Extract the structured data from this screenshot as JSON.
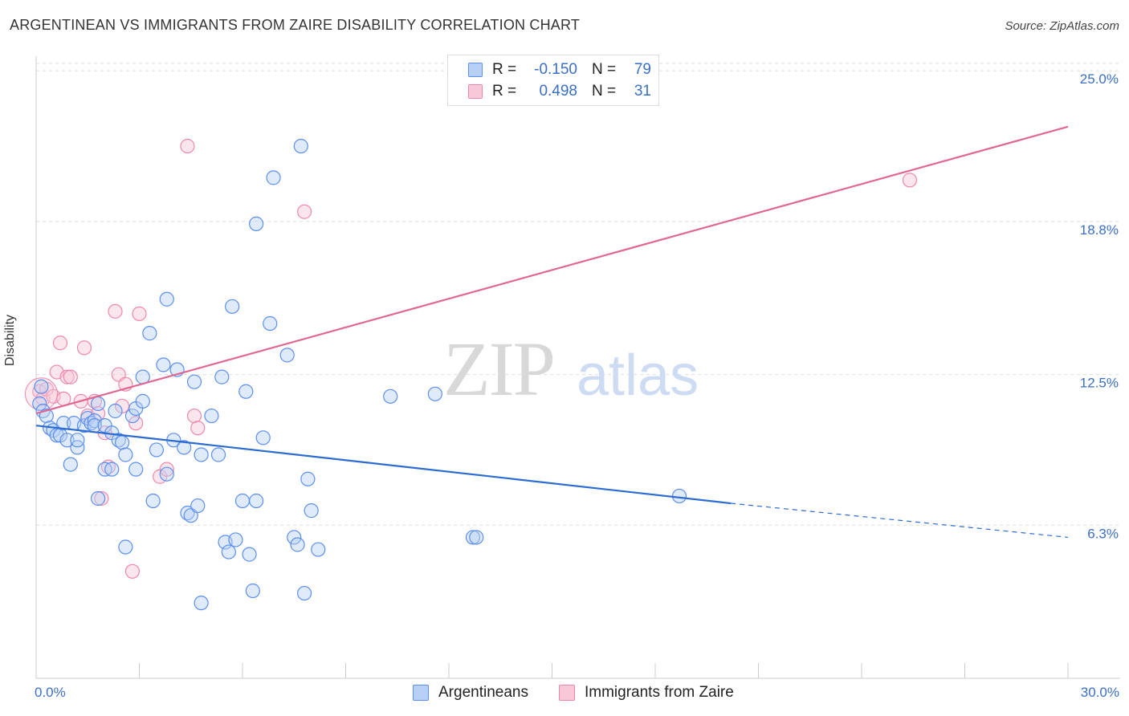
{
  "title": "ARGENTINEAN VS IMMIGRANTS FROM ZAIRE DISABILITY CORRELATION CHART",
  "source": "Source: ZipAtlas.com",
  "watermark": {
    "zip": "ZIP",
    "atlas": "atlas"
  },
  "colors": {
    "blue": "#5b8ff0",
    "blue_fill": "#b8d0f5",
    "blue_line": "#2c6bd0",
    "pink": "#ee88aa",
    "pink_fill": "#f8c8d8",
    "pink_line": "#e06890",
    "axis_text": "#3b6fc4",
    "grid": "#dddddd"
  },
  "legend": {
    "rows": [
      {
        "r_label": "R =",
        "r_value": "-0.150",
        "n_label": "N =",
        "n_value": "79"
      },
      {
        "r_label": "R =",
        "r_value": "0.498",
        "n_label": "N =",
        "n_value": "31"
      }
    ]
  },
  "bottom_legend": {
    "series1": "Argentineans",
    "series2": "Immigrants from Zaire"
  },
  "chart_data": {
    "type": "scatter",
    "title": "ARGENTINEAN VS IMMIGRANTS FROM ZAIRE DISABILITY CORRELATION CHART",
    "xlabel": "",
    "ylabel": "Disability",
    "xlim": [
      0,
      30
    ],
    "ylim": [
      0,
      25.6
    ],
    "x_tick_labels": [
      "0.0%",
      "30.0%"
    ],
    "y_ticks": [
      6.3,
      12.5,
      18.8,
      25.0
    ],
    "y_tick_labels": [
      "6.3%",
      "12.5%",
      "18.8%",
      "25.0%"
    ],
    "grid": "horizontal dashed",
    "legend_position": "top-center",
    "series": [
      {
        "name": "Argentineans",
        "r": -0.15,
        "n": 79,
        "trend": {
          "x0": 0,
          "y0": 10.4,
          "x1": 20.2,
          "y1": 7.2,
          "dashed_to_x": 30,
          "dashed_to_y": 5.8
        },
        "points": [
          [
            0.1,
            11.3
          ],
          [
            0.2,
            11.0
          ],
          [
            0.3,
            10.8
          ],
          [
            0.4,
            10.3
          ],
          [
            0.5,
            10.2
          ],
          [
            0.6,
            10.0
          ],
          [
            0.7,
            10.0
          ],
          [
            0.8,
            10.5
          ],
          [
            0.9,
            9.8
          ],
          [
            1.0,
            8.8
          ],
          [
            1.1,
            10.5
          ],
          [
            1.2,
            9.5
          ],
          [
            1.2,
            9.8
          ],
          [
            1.4,
            10.4
          ],
          [
            1.5,
            10.7
          ],
          [
            1.6,
            10.5
          ],
          [
            1.7,
            10.6
          ],
          [
            1.7,
            10.4
          ],
          [
            1.8,
            11.3
          ],
          [
            1.8,
            7.4
          ],
          [
            2.0,
            10.4
          ],
          [
            2.0,
            8.6
          ],
          [
            2.2,
            10.1
          ],
          [
            2.2,
            8.6
          ],
          [
            2.3,
            11.0
          ],
          [
            2.4,
            9.8
          ],
          [
            2.5,
            9.7
          ],
          [
            2.6,
            5.4
          ],
          [
            2.6,
            9.2
          ],
          [
            2.8,
            10.8
          ],
          [
            2.9,
            11.1
          ],
          [
            2.9,
            8.6
          ],
          [
            3.1,
            11.4
          ],
          [
            3.1,
            12.4
          ],
          [
            3.3,
            14.2
          ],
          [
            3.4,
            7.3
          ],
          [
            3.5,
            9.4
          ],
          [
            3.7,
            12.9
          ],
          [
            3.8,
            15.6
          ],
          [
            3.8,
            8.4
          ],
          [
            4.0,
            9.8
          ],
          [
            4.1,
            12.7
          ],
          [
            4.3,
            9.5
          ],
          [
            4.4,
            6.8
          ],
          [
            4.5,
            6.7
          ],
          [
            4.6,
            12.2
          ],
          [
            4.7,
            7.1
          ],
          [
            4.8,
            9.2
          ],
          [
            4.8,
            3.1
          ],
          [
            5.1,
            10.8
          ],
          [
            5.3,
            9.2
          ],
          [
            5.4,
            12.4
          ],
          [
            5.5,
            5.6
          ],
          [
            5.6,
            5.2
          ],
          [
            5.7,
            15.3
          ],
          [
            5.8,
            5.7
          ],
          [
            6.0,
            7.3
          ],
          [
            6.1,
            11.8
          ],
          [
            6.2,
            5.1
          ],
          [
            6.3,
            3.6
          ],
          [
            6.4,
            7.3
          ],
          [
            6.4,
            18.7
          ],
          [
            6.6,
            9.9
          ],
          [
            6.8,
            14.6
          ],
          [
            6.9,
            20.6
          ],
          [
            7.3,
            13.3
          ],
          [
            7.5,
            5.8
          ],
          [
            7.6,
            5.5
          ],
          [
            7.7,
            21.9
          ],
          [
            7.8,
            3.5
          ],
          [
            7.9,
            8.2
          ],
          [
            8.0,
            6.9
          ],
          [
            8.2,
            5.3
          ],
          [
            10.3,
            11.6
          ],
          [
            12.7,
            5.8
          ],
          [
            12.8,
            5.8
          ],
          [
            11.6,
            11.7
          ],
          [
            18.7,
            7.5
          ],
          [
            0.15,
            12.0
          ]
        ]
      },
      {
        "name": "Immigrants from Zaire",
        "r": 0.498,
        "n": 31,
        "trend": {
          "x0": 0,
          "y0": 10.9,
          "x1": 30,
          "y1": 22.7
        },
        "points": [
          [
            0.1,
            11.8
          ],
          [
            0.2,
            11.5
          ],
          [
            0.3,
            11.9
          ],
          [
            0.5,
            11.6
          ],
          [
            0.6,
            12.6
          ],
          [
            0.7,
            13.8
          ],
          [
            0.8,
            11.5
          ],
          [
            0.9,
            12.4
          ],
          [
            1.0,
            12.4
          ],
          [
            1.3,
            11.4
          ],
          [
            1.4,
            13.6
          ],
          [
            1.5,
            10.8
          ],
          [
            1.7,
            11.4
          ],
          [
            1.8,
            10.9
          ],
          [
            1.9,
            7.4
          ],
          [
            2.0,
            10.1
          ],
          [
            2.1,
            8.7
          ],
          [
            2.3,
            15.1
          ],
          [
            2.4,
            12.5
          ],
          [
            2.5,
            11.2
          ],
          [
            2.6,
            12.1
          ],
          [
            2.8,
            4.4
          ],
          [
            2.9,
            10.5
          ],
          [
            3.0,
            15.0
          ],
          [
            3.6,
            8.3
          ],
          [
            3.8,
            8.6
          ],
          [
            4.4,
            21.9
          ],
          [
            4.6,
            10.8
          ],
          [
            4.7,
            10.3
          ],
          [
            7.8,
            19.2
          ],
          [
            25.4,
            20.5
          ]
        ]
      }
    ]
  }
}
